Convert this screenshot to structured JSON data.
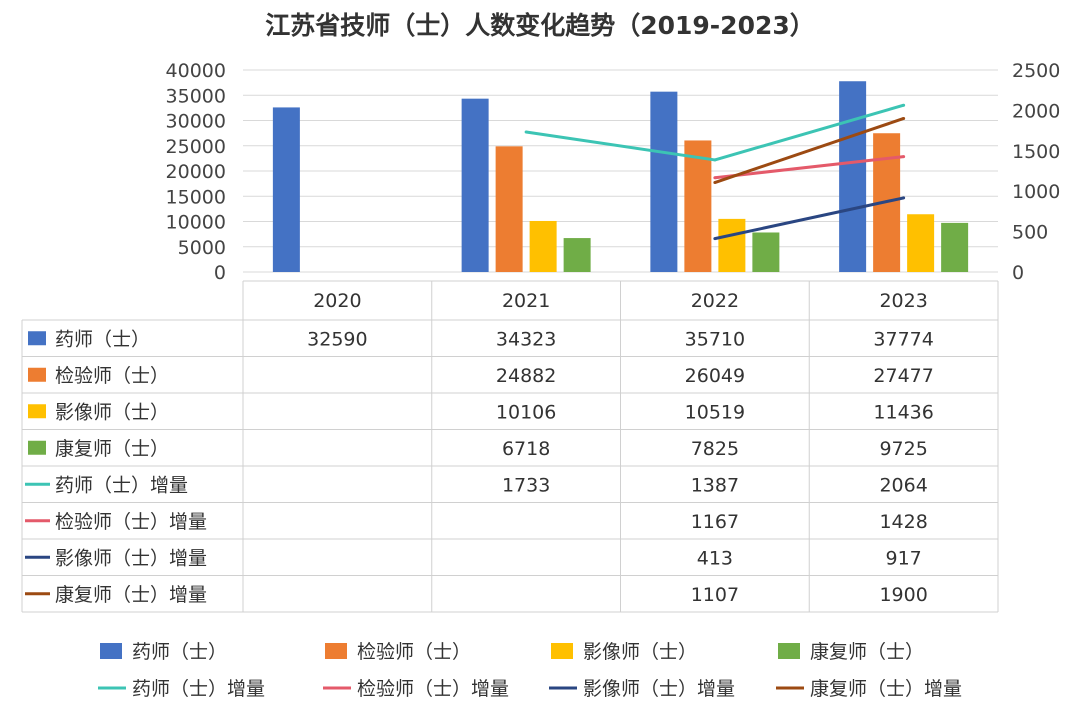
{
  "chart_data": {
    "type": "bar",
    "title": "江苏省技师（士）人数变化趋势（2019-2023）",
    "categories": [
      "2020",
      "2021",
      "2022",
      "2023"
    ],
    "ylim": [
      0,
      40000
    ],
    "y2lim": [
      0,
      2500
    ],
    "y_ticks": [
      "0",
      "5000",
      "10000",
      "15000",
      "20000",
      "25000",
      "30000",
      "35000",
      "40000"
    ],
    "y2_ticks": [
      "0",
      "500",
      "1000",
      "1500",
      "2000",
      "2500"
    ],
    "grid": true,
    "legend_position": "bottom",
    "series": [
      {
        "name": "药师（士）",
        "kind": "bar",
        "axis": "left",
        "color": "#4472C4",
        "values": [
          32590,
          34323,
          35710,
          37774
        ]
      },
      {
        "name": "检验师（士）",
        "kind": "bar",
        "axis": "left",
        "color": "#ED7D31",
        "values": [
          null,
          24882,
          26049,
          27477
        ]
      },
      {
        "name": "影像师（士）",
        "kind": "bar",
        "axis": "left",
        "color": "#FFC000",
        "values": [
          null,
          10106,
          10519,
          11436
        ]
      },
      {
        "name": "康复师（士）",
        "kind": "bar",
        "axis": "left",
        "color": "#70AD47",
        "values": [
          null,
          6718,
          7825,
          9725
        ]
      },
      {
        "name": "药师（士）增量",
        "kind": "line",
        "axis": "right",
        "color": "#3CC4B4",
        "values": [
          null,
          1733,
          1387,
          2064
        ]
      },
      {
        "name": "检验师（士）增量",
        "kind": "line",
        "axis": "right",
        "color": "#E45A6A",
        "values": [
          null,
          null,
          1167,
          1428
        ]
      },
      {
        "name": "影像师（士）增量",
        "kind": "line",
        "axis": "right",
        "color": "#2A4682",
        "values": [
          null,
          null,
          413,
          917
        ]
      },
      {
        "name": "康复师（士）增量",
        "kind": "line",
        "axis": "right",
        "color": "#9C4A12",
        "values": [
          null,
          null,
          1107,
          1900
        ]
      }
    ]
  }
}
